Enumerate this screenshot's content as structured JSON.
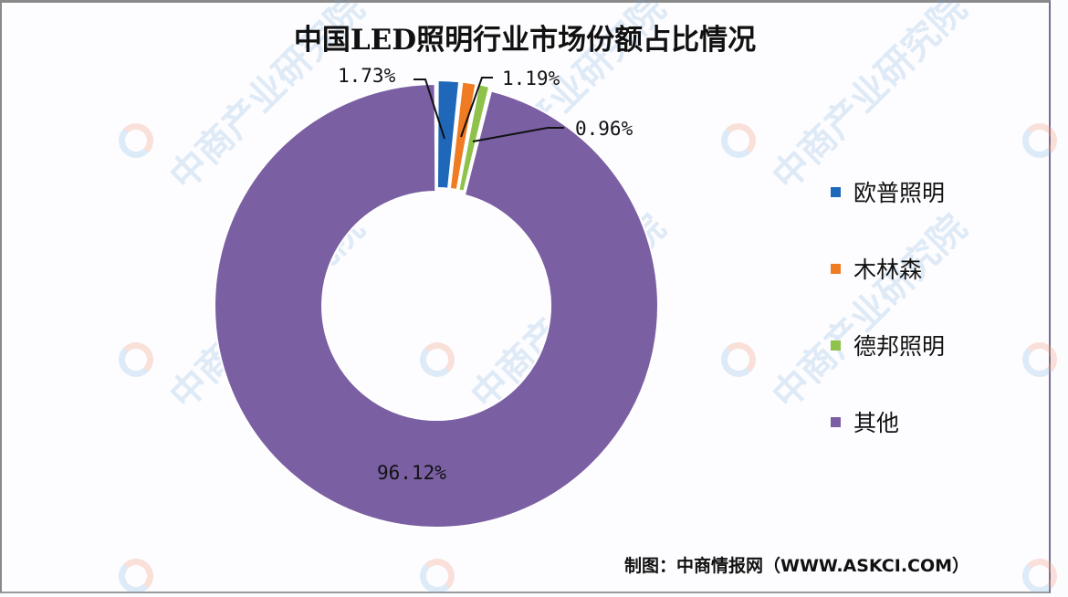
{
  "title": "中国LED照明行业市场份额占比情况",
  "source": "制图：中商情报网（WWW.ASKCI.COM）",
  "watermark_text": "中商产业研究院",
  "chart_data": {
    "type": "pie",
    "subtype": "donut",
    "title": "中国LED照明行业市场份额占比情况",
    "categories": [
      "欧普照明",
      "木林森",
      "德邦照明",
      "其他"
    ],
    "values": [
      1.73,
      1.19,
      0.96,
      96.12
    ],
    "unit": "%",
    "colors": [
      "#1f67b9",
      "#ef7b22",
      "#8fc24a",
      "#7a5fa3"
    ],
    "data_labels": [
      "1.73%",
      "1.19%",
      "0.96%",
      "96.12%"
    ],
    "legend_position": "right",
    "start_angle_deg": 0,
    "direction": "clockwise"
  },
  "legend": {
    "items": [
      {
        "label": "欧普照明",
        "color": "#1f67b9"
      },
      {
        "label": "木林森",
        "color": "#ef7b22"
      },
      {
        "label": "德邦照明",
        "color": "#8fc24a"
      },
      {
        "label": "其他",
        "color": "#7a5fa3"
      }
    ]
  },
  "labels": {
    "oupu": "1.73%",
    "mulinsen": "1.19%",
    "debang": "0.96%",
    "other": "96.12%"
  }
}
